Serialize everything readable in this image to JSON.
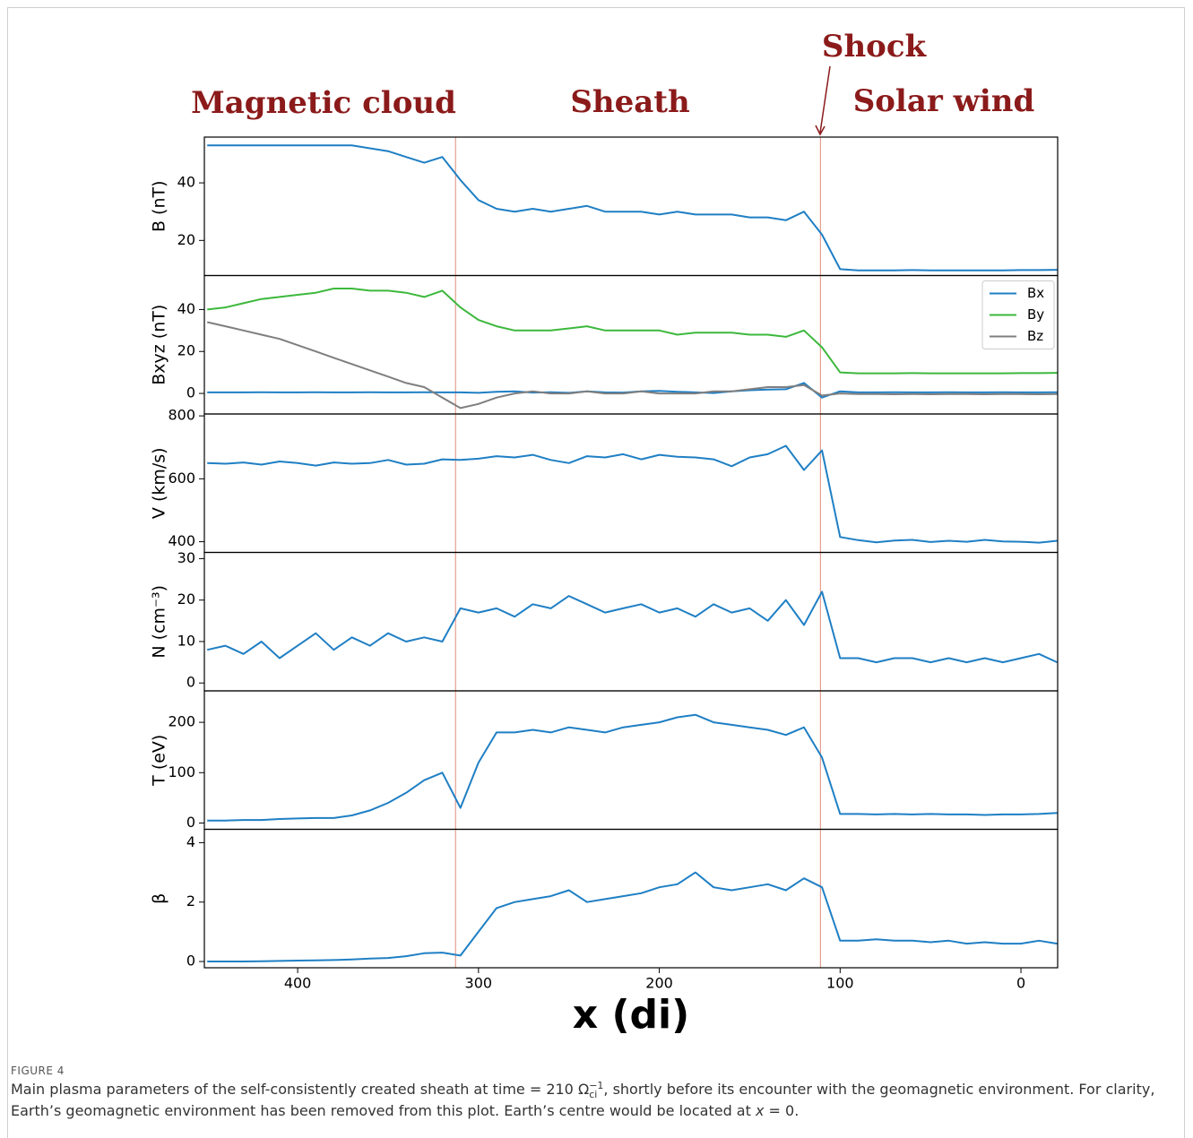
{
  "headers": [
    "Magnetic cloud",
    "Sheath",
    "Solar wind"
  ],
  "shock": "Shock",
  "vlines": [
    312.7,
    110.9
  ],
  "caption": {
    "label": "FIGURE 4",
    "text1": "Main plasma parameters of the self-consistently created sheath at time = 210 ",
    "omega": "Ω",
    "sub": "ci",
    "sup": "−1",
    "text2": ", shortly before its encounter with the geomagnetic environment. For clarity, Earth’s geomagnetic environment has been removed from this plot. Earth’s centre would be located at ",
    "xvar": "x",
    "text3": " = 0."
  },
  "chart_data": [
    {
      "type": "line",
      "ylabel": "B (nT)",
      "xlim": [
        451.6,
        -20.3
      ],
      "ylim": [
        7.8,
        55.9
      ],
      "yticks": [
        20,
        40
      ],
      "x": [
        450,
        440,
        430,
        420,
        410,
        400,
        390,
        380,
        370,
        360,
        350,
        340,
        330,
        320,
        310,
        300,
        290,
        280,
        270,
        260,
        250,
        240,
        230,
        220,
        210,
        200,
        190,
        180,
        170,
        160,
        150,
        140,
        130,
        120,
        110,
        100,
        90,
        80,
        70,
        60,
        50,
        40,
        30,
        20,
        10,
        0,
        -10,
        -20
      ],
      "series": [
        {
          "name": "B",
          "color": "#1f7fc4",
          "values": [
            53,
            53,
            53,
            53,
            53,
            53,
            53,
            53,
            53,
            52,
            51,
            49,
            47,
            49,
            41,
            34,
            31,
            30,
            31,
            30,
            31,
            32,
            30,
            30,
            30,
            29,
            30,
            29,
            29,
            29,
            28,
            28,
            27,
            30,
            22,
            10,
            9.6,
            9.6,
            9.6,
            9.7,
            9.6,
            9.6,
            9.6,
            9.6,
            9.6,
            9.7,
            9.7,
            9.8
          ]
        }
      ]
    },
    {
      "type": "line",
      "ylabel": "Bxyz (nT)",
      "xlim": [
        451.6,
        -20.3
      ],
      "ylim": [
        -9.8,
        56.2
      ],
      "yticks": [
        0,
        20,
        40
      ],
      "legend": "upper right",
      "x": [
        450,
        440,
        430,
        420,
        410,
        400,
        390,
        380,
        370,
        360,
        350,
        340,
        330,
        320,
        310,
        300,
        290,
        280,
        270,
        260,
        250,
        240,
        230,
        220,
        210,
        200,
        190,
        180,
        170,
        160,
        150,
        140,
        130,
        120,
        110,
        100,
        90,
        80,
        70,
        60,
        50,
        40,
        30,
        20,
        10,
        0,
        -10,
        -20
      ],
      "series": [
        {
          "name": "Bx",
          "color": "#1f7fc4",
          "values": [
            0.5,
            0.5,
            0.5,
            0.6,
            0.5,
            0.5,
            0.6,
            0.5,
            0.5,
            0.6,
            0.5,
            0.5,
            0.6,
            0.5,
            0.5,
            0.3,
            0.8,
            1,
            0.4,
            0.6,
            0.3,
            1,
            0.5,
            0.4,
            1,
            1.2,
            0.8,
            0.5,
            0.2,
            1,
            1.5,
            1.8,
            2,
            5,
            -2,
            1,
            0.5,
            0.5,
            0.6,
            0.5,
            0.5,
            0.6,
            0.5,
            0.5,
            0.6,
            0.5,
            0.5,
            0.6
          ]
        },
        {
          "name": "By",
          "color": "#3cb83c",
          "values": [
            40,
            41,
            43,
            45,
            46,
            47,
            48,
            50,
            50,
            49,
            49,
            48,
            46,
            49,
            41,
            35,
            32,
            30,
            30,
            30,
            31,
            32,
            30,
            30,
            30,
            30,
            28,
            29,
            29,
            29,
            28,
            28,
            27,
            30,
            22,
            10,
            9.6,
            9.6,
            9.6,
            9.7,
            9.6,
            9.6,
            9.6,
            9.6,
            9.6,
            9.7,
            9.7,
            9.8
          ]
        },
        {
          "name": "Bz",
          "color": "#7f7f7f",
          "values": [
            34,
            32,
            30,
            28,
            26,
            23,
            20,
            17,
            14,
            11,
            8,
            5,
            3,
            -2,
            -7,
            -5,
            -2,
            0,
            1,
            0,
            0,
            1,
            0,
            0,
            1,
            0,
            0,
            0,
            1,
            1,
            2,
            3,
            3,
            4,
            -1,
            0,
            -0.3,
            -0.3,
            -0.4,
            -0.3,
            -0.4,
            -0.3,
            -0.3,
            -0.4,
            -0.3,
            -0.3,
            -0.4,
            -0.3
          ]
        }
      ]
    },
    {
      "type": "line",
      "ylabel": "V (km/s)",
      "xlim": [
        451.6,
        -20.3
      ],
      "ylim": [
        366,
        806
      ],
      "yticks": [
        400,
        600,
        800
      ],
      "x": [
        450,
        440,
        430,
        420,
        410,
        400,
        390,
        380,
        370,
        360,
        350,
        340,
        330,
        320,
        310,
        300,
        290,
        280,
        270,
        260,
        250,
        240,
        230,
        220,
        210,
        200,
        190,
        180,
        170,
        160,
        150,
        140,
        130,
        120,
        110,
        100,
        90,
        80,
        70,
        60,
        50,
        40,
        30,
        20,
        10,
        0,
        -10,
        -20
      ],
      "series": [
        {
          "name": "V",
          "color": "#1f7fc4",
          "values": [
            650,
            648,
            652,
            645,
            655,
            650,
            642,
            652,
            648,
            650,
            660,
            645,
            648,
            662,
            660,
            664,
            672,
            668,
            676,
            660,
            650,
            672,
            668,
            678,
            662,
            676,
            670,
            668,
            662,
            640,
            668,
            678,
            705,
            628,
            690,
            415,
            405,
            398,
            404,
            406,
            399,
            403,
            400,
            406,
            401,
            400,
            397,
            403
          ]
        }
      ]
    },
    {
      "type": "line",
      "ylabel": "N (cm⁻³)",
      "xlim": [
        451.6,
        -20.3
      ],
      "ylim": [
        -1.9,
        31.5
      ],
      "yticks": [
        0,
        10,
        20,
        30
      ],
      "x": [
        450,
        440,
        430,
        420,
        410,
        400,
        390,
        380,
        370,
        360,
        350,
        340,
        330,
        320,
        310,
        300,
        290,
        280,
        270,
        260,
        250,
        240,
        230,
        220,
        210,
        200,
        190,
        180,
        170,
        160,
        150,
        140,
        130,
        120,
        110,
        100,
        90,
        80,
        70,
        60,
        50,
        40,
        30,
        20,
        10,
        0,
        -10,
        -20
      ],
      "series": [
        {
          "name": "N",
          "color": "#1f7fc4",
          "values": [
            8,
            9,
            7,
            10,
            6,
            9,
            12,
            8,
            11,
            9,
            12,
            10,
            11,
            10,
            18,
            17,
            18,
            16,
            19,
            18,
            21,
            19,
            17,
            18,
            19,
            17,
            18,
            16,
            19,
            17,
            18,
            15,
            20,
            14,
            22,
            6,
            6,
            5,
            6,
            6,
            5,
            6,
            5,
            6,
            5,
            6,
            7,
            5
          ]
        }
      ]
    },
    {
      "type": "line",
      "ylabel": "T (eV)",
      "xlim": [
        451.6,
        -20.3
      ],
      "ylim": [
        -12.5,
        262.5
      ],
      "yticks": [
        0,
        100,
        200
      ],
      "x": [
        450,
        440,
        430,
        420,
        410,
        400,
        390,
        380,
        370,
        360,
        350,
        340,
        330,
        320,
        310,
        300,
        290,
        280,
        270,
        260,
        250,
        240,
        230,
        220,
        210,
        200,
        190,
        180,
        170,
        160,
        150,
        140,
        130,
        120,
        110,
        100,
        90,
        80,
        70,
        60,
        50,
        40,
        30,
        20,
        10,
        0,
        -10,
        -20
      ],
      "series": [
        {
          "name": "T",
          "color": "#1f7fc4",
          "values": [
            5,
            5,
            6,
            6,
            8,
            9,
            10,
            10,
            15,
            25,
            40,
            60,
            85,
            100,
            30,
            120,
            180,
            180,
            185,
            180,
            190,
            185,
            180,
            190,
            195,
            200,
            210,
            215,
            200,
            195,
            190,
            185,
            175,
            190,
            130,
            18,
            18,
            17,
            18,
            17,
            18,
            17,
            17,
            16,
            17,
            17,
            18,
            20
          ]
        }
      ]
    },
    {
      "type": "line",
      "ylabel": "β",
      "xlim": [
        451.6,
        -20.3
      ],
      "ylim": [
        -0.21,
        4.45
      ],
      "yticks": [
        0,
        2,
        4
      ],
      "xticks": [
        400,
        300,
        200,
        100,
        0
      ],
      "xlabel": "x (di)",
      "x": [
        450,
        440,
        430,
        420,
        410,
        400,
        390,
        380,
        370,
        360,
        350,
        340,
        330,
        320,
        310,
        300,
        290,
        280,
        270,
        260,
        250,
        240,
        230,
        220,
        210,
        200,
        190,
        180,
        170,
        160,
        150,
        140,
        130,
        120,
        110,
        100,
        90,
        80,
        70,
        60,
        50,
        40,
        30,
        20,
        10,
        0,
        -10,
        -20
      ],
      "series": [
        {
          "name": "β",
          "color": "#1f7fc4",
          "values": [
            0,
            0,
            0,
            0.01,
            0.02,
            0.03,
            0.04,
            0.05,
            0.07,
            0.1,
            0.12,
            0.18,
            0.28,
            0.3,
            0.2,
            1.0,
            1.8,
            2.0,
            2.1,
            2.2,
            2.4,
            2.0,
            2.1,
            2.2,
            2.3,
            2.5,
            2.6,
            3.0,
            2.5,
            2.4,
            2.5,
            2.6,
            2.4,
            2.8,
            2.5,
            0.7,
            0.7,
            0.75,
            0.7,
            0.7,
            0.65,
            0.7,
            0.6,
            0.65,
            0.6,
            0.6,
            0.7,
            0.6
          ]
        }
      ]
    }
  ]
}
